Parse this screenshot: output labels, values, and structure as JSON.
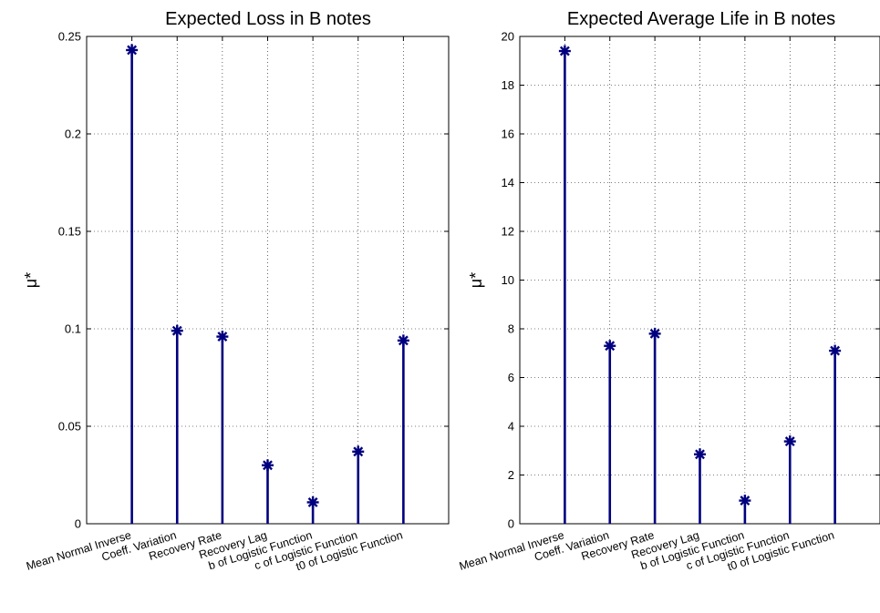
{
  "chart_data": [
    {
      "type": "stem",
      "title": "Expected Loss in B notes",
      "xlabel": "",
      "ylabel": "μ*",
      "categories": [
        "Mean Normal Inverse",
        "Coeff. Variation",
        "Recovery Rate",
        "Recovery Lag",
        "b of Logistic Function",
        "c of Logistic Function",
        "t0 of Logistic Function"
      ],
      "values": [
        0.243,
        0.099,
        0.096,
        0.03,
        0.011,
        0.037,
        0.094
      ],
      "ylim": [
        0,
        0.25
      ],
      "yticks": [
        "0",
        "0.05",
        "0.1",
        "0.15",
        "0.2",
        "0.25"
      ],
      "ytick_values": [
        0,
        0.05,
        0.1,
        0.15,
        0.2,
        0.25
      ],
      "grid": true,
      "color": "#00007f"
    },
    {
      "type": "stem",
      "title": "Expected Average Life in B notes",
      "xlabel": "",
      "ylabel": "μ*",
      "categories": [
        "Mean Normal Inverse",
        "Coeff. Variation",
        "Recovery Rate",
        "Recovery Lag",
        "b of Logistic Function",
        "c of Logistic Function",
        "t0 of Logistic Function"
      ],
      "values": [
        19.4,
        7.3,
        7.8,
        2.85,
        0.95,
        3.38,
        7.1
      ],
      "ylim": [
        0,
        20
      ],
      "yticks": [
        "0",
        "2",
        "4",
        "6",
        "8",
        "10",
        "12",
        "14",
        "16",
        "18",
        "20"
      ],
      "ytick_values": [
        0,
        2,
        4,
        6,
        8,
        10,
        12,
        14,
        16,
        18,
        20
      ],
      "grid": true,
      "color": "#00007f"
    }
  ]
}
